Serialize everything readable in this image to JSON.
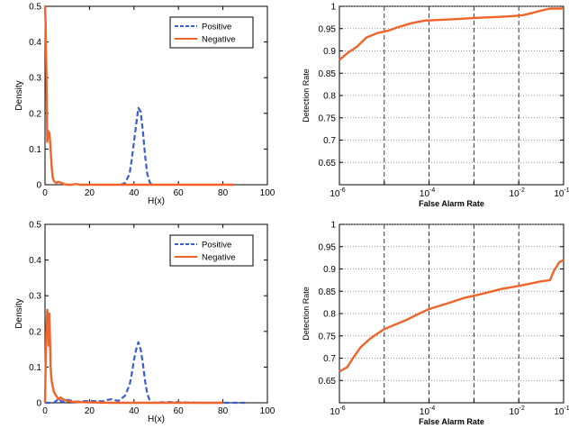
{
  "chart_data": [
    {
      "type": "line",
      "xlabel": "H(x)",
      "ylabel": "Density",
      "xlim": [
        0,
        100
      ],
      "ylim": [
        0,
        0.5
      ],
      "xticks": [
        "0",
        "20",
        "40",
        "60",
        "80",
        "100"
      ],
      "yticks": [
        "0",
        "0.1",
        "0.2",
        "0.3",
        "0.4",
        "0.5"
      ],
      "grid": false,
      "legend_position": "top-right",
      "series": [
        {
          "name": "Positive",
          "color": "#3a5fcd",
          "style": "dashed",
          "x": [
            34,
            36,
            38,
            39,
            40,
            41,
            42,
            43,
            44,
            45,
            46,
            47,
            48
          ],
          "y": [
            0,
            0.005,
            0.03,
            0.07,
            0.12,
            0.17,
            0.215,
            0.205,
            0.15,
            0.08,
            0.03,
            0.008,
            0
          ]
        },
        {
          "name": "Negative",
          "color": "#f0642a",
          "style": "solid",
          "x": [
            0,
            0.3,
            0.6,
            1,
            1.5,
            2,
            2.5,
            3,
            3.5,
            4,
            5,
            6,
            7,
            8,
            9,
            10,
            12,
            14,
            16,
            20,
            40,
            60,
            85
          ],
          "y": [
            0.5,
            0.45,
            0.32,
            0.12,
            0.15,
            0.145,
            0.1,
            0.05,
            0.02,
            0.01,
            0.005,
            0.008,
            0.006,
            0.003,
            0.001,
            0,
            0,
            0.002,
            0,
            0,
            0,
            0,
            0
          ]
        }
      ]
    },
    {
      "type": "line",
      "xlabel": "False Alarm Rate",
      "ylabel": "Detection Rate",
      "xscale": "log",
      "xlim": [
        1e-06,
        0.1
      ],
      "ylim": [
        0.6,
        1
      ],
      "x_minor_ticks": [
        1e-05,
        0.001
      ],
      "xticks": [
        {
          "base": "10",
          "exp": "-6"
        },
        {
          "base": "10",
          "exp": "-4"
        },
        {
          "base": "10",
          "exp": "-2"
        },
        {
          "base": "10",
          "exp": "-1"
        }
      ],
      "yticks": [
        "0.65",
        "0.7",
        "0.75",
        "0.8",
        "0.85",
        "0.9",
        "0.95",
        "1"
      ],
      "grid": true,
      "series": [
        {
          "color": "#f0642a",
          "x": [
            1e-06,
            1.5e-06,
            2.5e-06,
            4e-06,
            7e-06,
            1.2e-05,
            2e-05,
            4e-05,
            8e-05,
            0.0002,
            0.0005,
            0.001,
            0.003,
            0.007,
            0.012,
            0.02,
            0.03,
            0.05,
            0.1
          ],
          "y": [
            0.88,
            0.895,
            0.91,
            0.93,
            0.94,
            0.945,
            0.953,
            0.962,
            0.968,
            0.97,
            0.972,
            0.974,
            0.976,
            0.978,
            0.98,
            0.985,
            0.99,
            0.995,
            0.995
          ]
        }
      ]
    },
    {
      "type": "line",
      "xlabel": "H(x)",
      "ylabel": "Density",
      "xlim": [
        0,
        100
      ],
      "ylim": [
        0,
        0.5
      ],
      "xticks": [
        "0",
        "20",
        "40",
        "60",
        "80",
        "100"
      ],
      "yticks": [
        "0",
        "0.1",
        "0.2",
        "0.3",
        "0.4",
        "0.5"
      ],
      "grid": false,
      "legend_position": "top-right",
      "series": [
        {
          "name": "Positive",
          "color": "#3a5fcd",
          "style": "dashed",
          "x": [
            0,
            4,
            6,
            8,
            10,
            14,
            20,
            26,
            28,
            30,
            33,
            36,
            38,
            39,
            40,
            41,
            42,
            43,
            44,
            45,
            46,
            47,
            48,
            55,
            70,
            90
          ],
          "y": [
            0,
            0,
            0.01,
            0.002,
            0.008,
            0.003,
            0.005,
            0.004,
            0.008,
            0.01,
            0.005,
            0.02,
            0.05,
            0.08,
            0.12,
            0.15,
            0.17,
            0.15,
            0.11,
            0.06,
            0.025,
            0.008,
            0,
            0.002,
            0,
            0
          ]
        },
        {
          "name": "Negative",
          "color": "#f0642a",
          "style": "solid",
          "x": [
            0,
            0.3,
            0.6,
            1,
            1.3,
            1.6,
            2,
            2.5,
            3,
            4,
            5,
            6,
            7,
            8,
            10,
            12,
            15,
            20,
            30,
            50,
            80
          ],
          "y": [
            0,
            0.1,
            0.2,
            0.26,
            0.24,
            0.16,
            0.25,
            0.1,
            0.06,
            0.03,
            0.02,
            0.01,
            0.015,
            0.01,
            0.005,
            0.003,
            0.002,
            0.001,
            0,
            0,
            0
          ]
        }
      ]
    },
    {
      "type": "line",
      "xlabel": "False Alarm Rate",
      "ylabel": "Detection Rate",
      "xscale": "log",
      "xlim": [
        1e-06,
        0.1
      ],
      "ylim": [
        0.6,
        1
      ],
      "x_minor_ticks": [
        1e-05,
        0.001
      ],
      "xticks": [
        {
          "base": "10",
          "exp": "-6"
        },
        {
          "base": "10",
          "exp": "-4"
        },
        {
          "base": "10",
          "exp": "-2"
        },
        {
          "base": "10",
          "exp": "-1"
        }
      ],
      "yticks": [
        "0.65",
        "0.7",
        "0.75",
        "0.8",
        "0.85",
        "0.9",
        "0.95",
        "1"
      ],
      "grid": true,
      "series": [
        {
          "color": "#f0642a",
          "x": [
            1e-06,
            1.5e-06,
            2e-06,
            3e-06,
            5e-06,
            1e-05,
            3e-05,
            6e-05,
            0.0001,
            0.0003,
            0.0006,
            0.001,
            0.002,
            0.004,
            0.01,
            0.02,
            0.03,
            0.05,
            0.06,
            0.08,
            0.1
          ],
          "y": [
            0.67,
            0.68,
            0.7,
            0.725,
            0.745,
            0.765,
            0.785,
            0.8,
            0.81,
            0.825,
            0.835,
            0.84,
            0.847,
            0.855,
            0.862,
            0.868,
            0.872,
            0.875,
            0.895,
            0.915,
            0.92
          ]
        }
      ]
    }
  ]
}
